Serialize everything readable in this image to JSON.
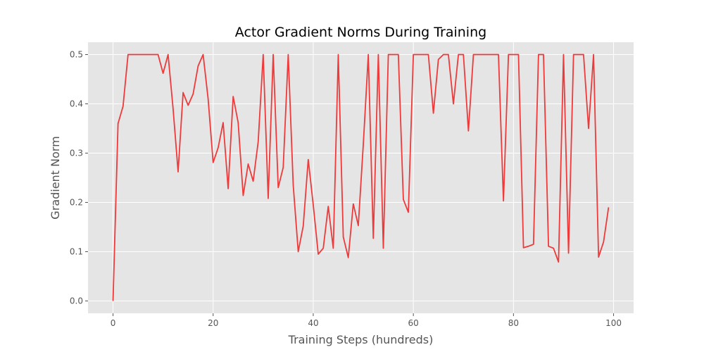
{
  "chart_data": {
    "type": "line",
    "title": "Actor Gradient Norms During Training",
    "xlabel": "Training Steps (hundreds)",
    "ylabel": "Gradient Norm",
    "xlim": [
      -5,
      104
    ],
    "ylim": [
      -0.025,
      0.525
    ],
    "xticks": [
      0,
      20,
      40,
      60,
      80,
      100
    ],
    "yticks": [
      0.0,
      0.1,
      0.2,
      0.3,
      0.4,
      0.5
    ],
    "xtick_labels": [
      "0",
      "20",
      "40",
      "60",
      "80",
      "100"
    ],
    "ytick_labels": [
      "0.0",
      "0.1",
      "0.2",
      "0.3",
      "0.4",
      "0.5"
    ],
    "grid": true,
    "background": "#e5e5e5",
    "series": [
      {
        "color": "#ee3a3a",
        "x": [
          0,
          1,
          2,
          3,
          4,
          5,
          6,
          7,
          8,
          9,
          10,
          11,
          12,
          13,
          14,
          15,
          16,
          17,
          18,
          19,
          20,
          21,
          22,
          23,
          24,
          25,
          26,
          27,
          28,
          29,
          30,
          31,
          32,
          33,
          34,
          35,
          36,
          37,
          38,
          39,
          40,
          41,
          42,
          43,
          44,
          45,
          46,
          47,
          48,
          49,
          50,
          51,
          52,
          53,
          54,
          55,
          56,
          57,
          58,
          59,
          60,
          61,
          62,
          63,
          64,
          65,
          66,
          67,
          68,
          69,
          70,
          71,
          72,
          73,
          74,
          75,
          76,
          77,
          78,
          79,
          80,
          81,
          82,
          83,
          84,
          85,
          86,
          87,
          88,
          89,
          90,
          91,
          92,
          93,
          94,
          95,
          96,
          97,
          98,
          99
        ],
        "values": [
          0.0,
          0.36,
          0.395,
          0.5,
          0.5,
          0.5,
          0.5,
          0.5,
          0.5,
          0.5,
          0.462,
          0.5,
          0.39,
          0.262,
          0.423,
          0.397,
          0.42,
          0.477,
          0.5,
          0.41,
          0.281,
          0.311,
          0.362,
          0.228,
          0.415,
          0.362,
          0.214,
          0.278,
          0.243,
          0.323,
          0.5,
          0.208,
          0.5,
          0.23,
          0.271,
          0.5,
          0.235,
          0.1,
          0.152,
          0.287,
          0.195,
          0.095,
          0.107,
          0.192,
          0.107,
          0.5,
          0.13,
          0.088,
          0.197,
          0.153,
          0.318,
          0.5,
          0.127,
          0.5,
          0.107,
          0.5,
          0.5,
          0.5,
          0.206,
          0.18,
          0.5,
          0.5,
          0.5,
          0.5,
          0.381,
          0.49,
          0.5,
          0.5,
          0.4,
          0.5,
          0.5,
          0.345,
          0.5,
          0.5,
          0.5,
          0.5,
          0.5,
          0.5,
          0.203,
          0.5,
          0.5,
          0.5,
          0.108,
          0.111,
          0.115,
          0.5,
          0.5,
          0.111,
          0.107,
          0.079,
          0.5,
          0.097,
          0.5,
          0.5,
          0.5,
          0.35,
          0.5,
          0.089,
          0.12,
          0.19
        ]
      }
    ]
  }
}
